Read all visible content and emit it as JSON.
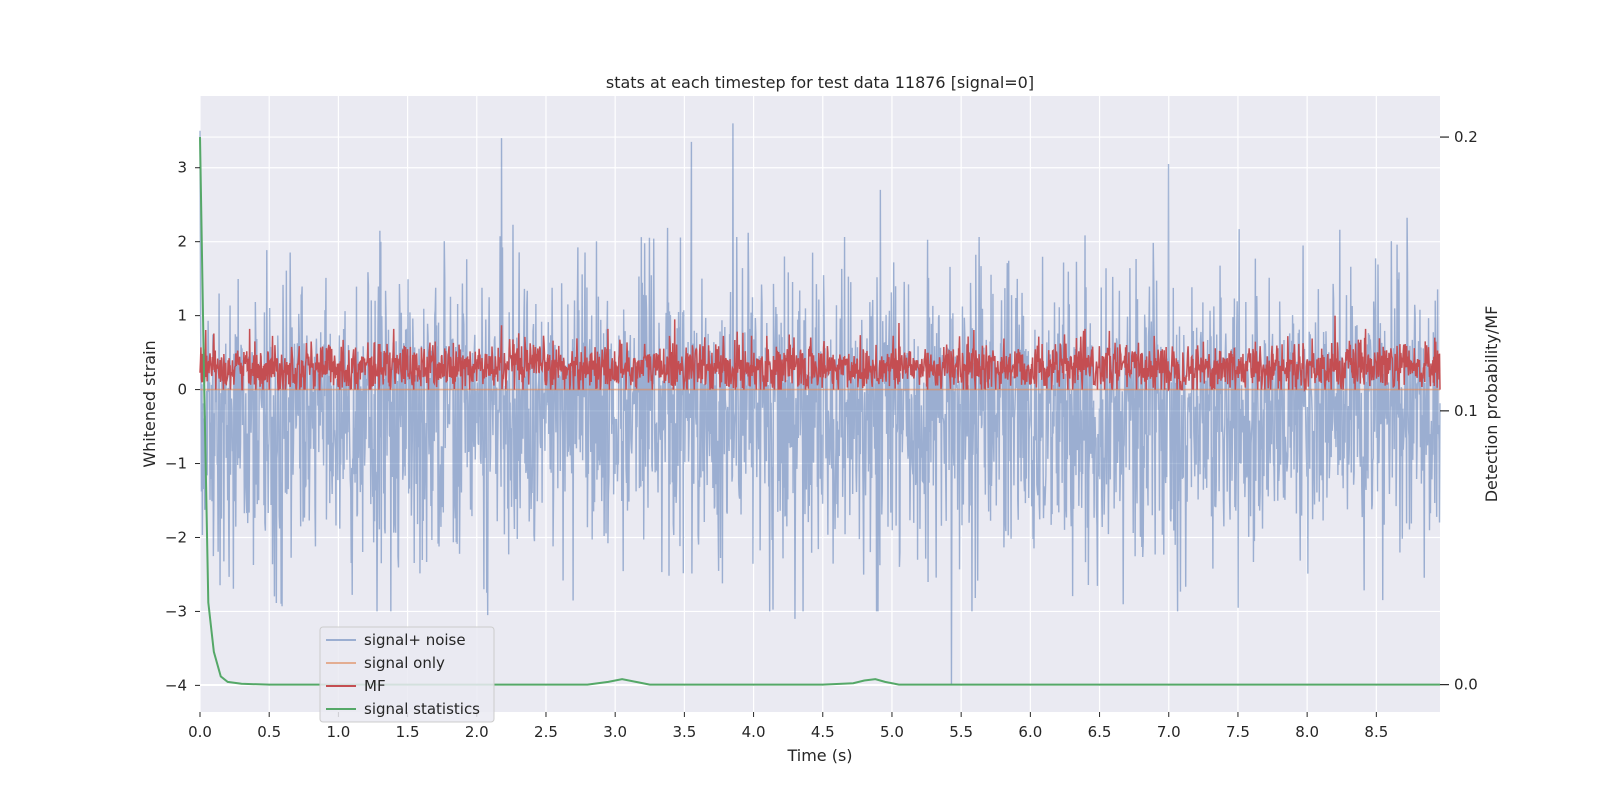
{
  "chart_data": {
    "type": "line",
    "title": "stats at each timestep for test data 11876 [signal=0]",
    "xlabel": "Time (s)",
    "ylabel": "Whitened strain",
    "y2label": "Detection probability/MF",
    "xlim": [
      0.0,
      8.96
    ],
    "ylim": [
      -4.36,
      3.97
    ],
    "y2lim": [
      -0.01,
      0.215
    ],
    "x_ticks": [
      "0.0",
      "0.5",
      "1.0",
      "1.5",
      "2.0",
      "2.5",
      "3.0",
      "3.5",
      "4.0",
      "4.5",
      "5.0",
      "5.5",
      "6.0",
      "6.5",
      "7.0",
      "7.5",
      "8.0",
      "8.5"
    ],
    "x_tick_values": [
      0.0,
      0.5,
      1.0,
      1.5,
      2.0,
      2.5,
      3.0,
      3.5,
      4.0,
      4.5,
      5.0,
      5.5,
      6.0,
      6.5,
      7.0,
      7.5,
      8.0,
      8.5
    ],
    "y_ticks": [
      "−4",
      "−3",
      "−2",
      "−1",
      "0",
      "1",
      "2",
      "3"
    ],
    "y_tick_values": [
      -4,
      -3,
      -2,
      -1,
      0,
      1,
      2,
      3
    ],
    "y2_ticks": [
      "0.0",
      "0.1",
      "0.2"
    ],
    "y2_tick_values": [
      0.0,
      0.1,
      0.2
    ],
    "grid": true,
    "legend_position": "lower-left",
    "series": [
      {
        "name": "signal+ noise",
        "color": "#4c72b0",
        "opacity": 0.5,
        "axis": "left",
        "description": "dense noise approx. mean -0.35, range about -4 to 3.6",
        "peaks": [
          [
            0.0,
            3.5
          ],
          [
            2.18,
            3.4
          ],
          [
            3.55,
            3.35
          ],
          [
            3.85,
            3.6
          ],
          [
            7.0,
            3.05
          ],
          [
            5.43,
            -4.0
          ],
          [
            2.08,
            -3.05
          ],
          [
            4.3,
            -3.1
          ],
          [
            4.9,
            -3.0
          ],
          [
            7.5,
            -2.95
          ]
        ]
      },
      {
        "name": "signal only",
        "color": "#dd8452",
        "opacity": 0.6,
        "axis": "left",
        "value": 0.0
      },
      {
        "name": "MF",
        "color": "#c44e52",
        "axis": "left",
        "description": "noisy band approx. 0 to 0.9, mean about 0.3",
        "peaks": [
          [
            2.18,
            0.87
          ],
          [
            3.43,
            0.95
          ],
          [
            5.05,
            0.9
          ],
          [
            8.2,
            1.0
          ]
        ]
      },
      {
        "name": "signal statistics",
        "color": "#55a868",
        "axis": "right",
        "x": [
          0.0,
          0.03,
          0.06,
          0.1,
          0.15,
          0.2,
          0.3,
          0.5,
          1.0,
          2.0,
          2.5,
          2.8,
          2.95,
          3.05,
          3.15,
          3.25,
          3.5,
          4.0,
          4.5,
          4.72,
          4.8,
          4.88,
          4.95,
          5.05,
          5.5,
          6.0,
          7.0,
          8.0,
          8.96
        ],
        "y": [
          0.2,
          0.11,
          0.03,
          0.012,
          0.003,
          0.001,
          0.0003,
          0.0,
          0.0,
          0.0,
          0.0,
          0.0,
          0.001,
          0.002,
          0.001,
          0.0,
          0.0,
          0.0,
          0.0,
          0.0005,
          0.0015,
          0.002,
          0.001,
          0.0,
          0.0,
          0.0,
          0.0,
          0.0,
          0.0
        ]
      }
    ]
  }
}
